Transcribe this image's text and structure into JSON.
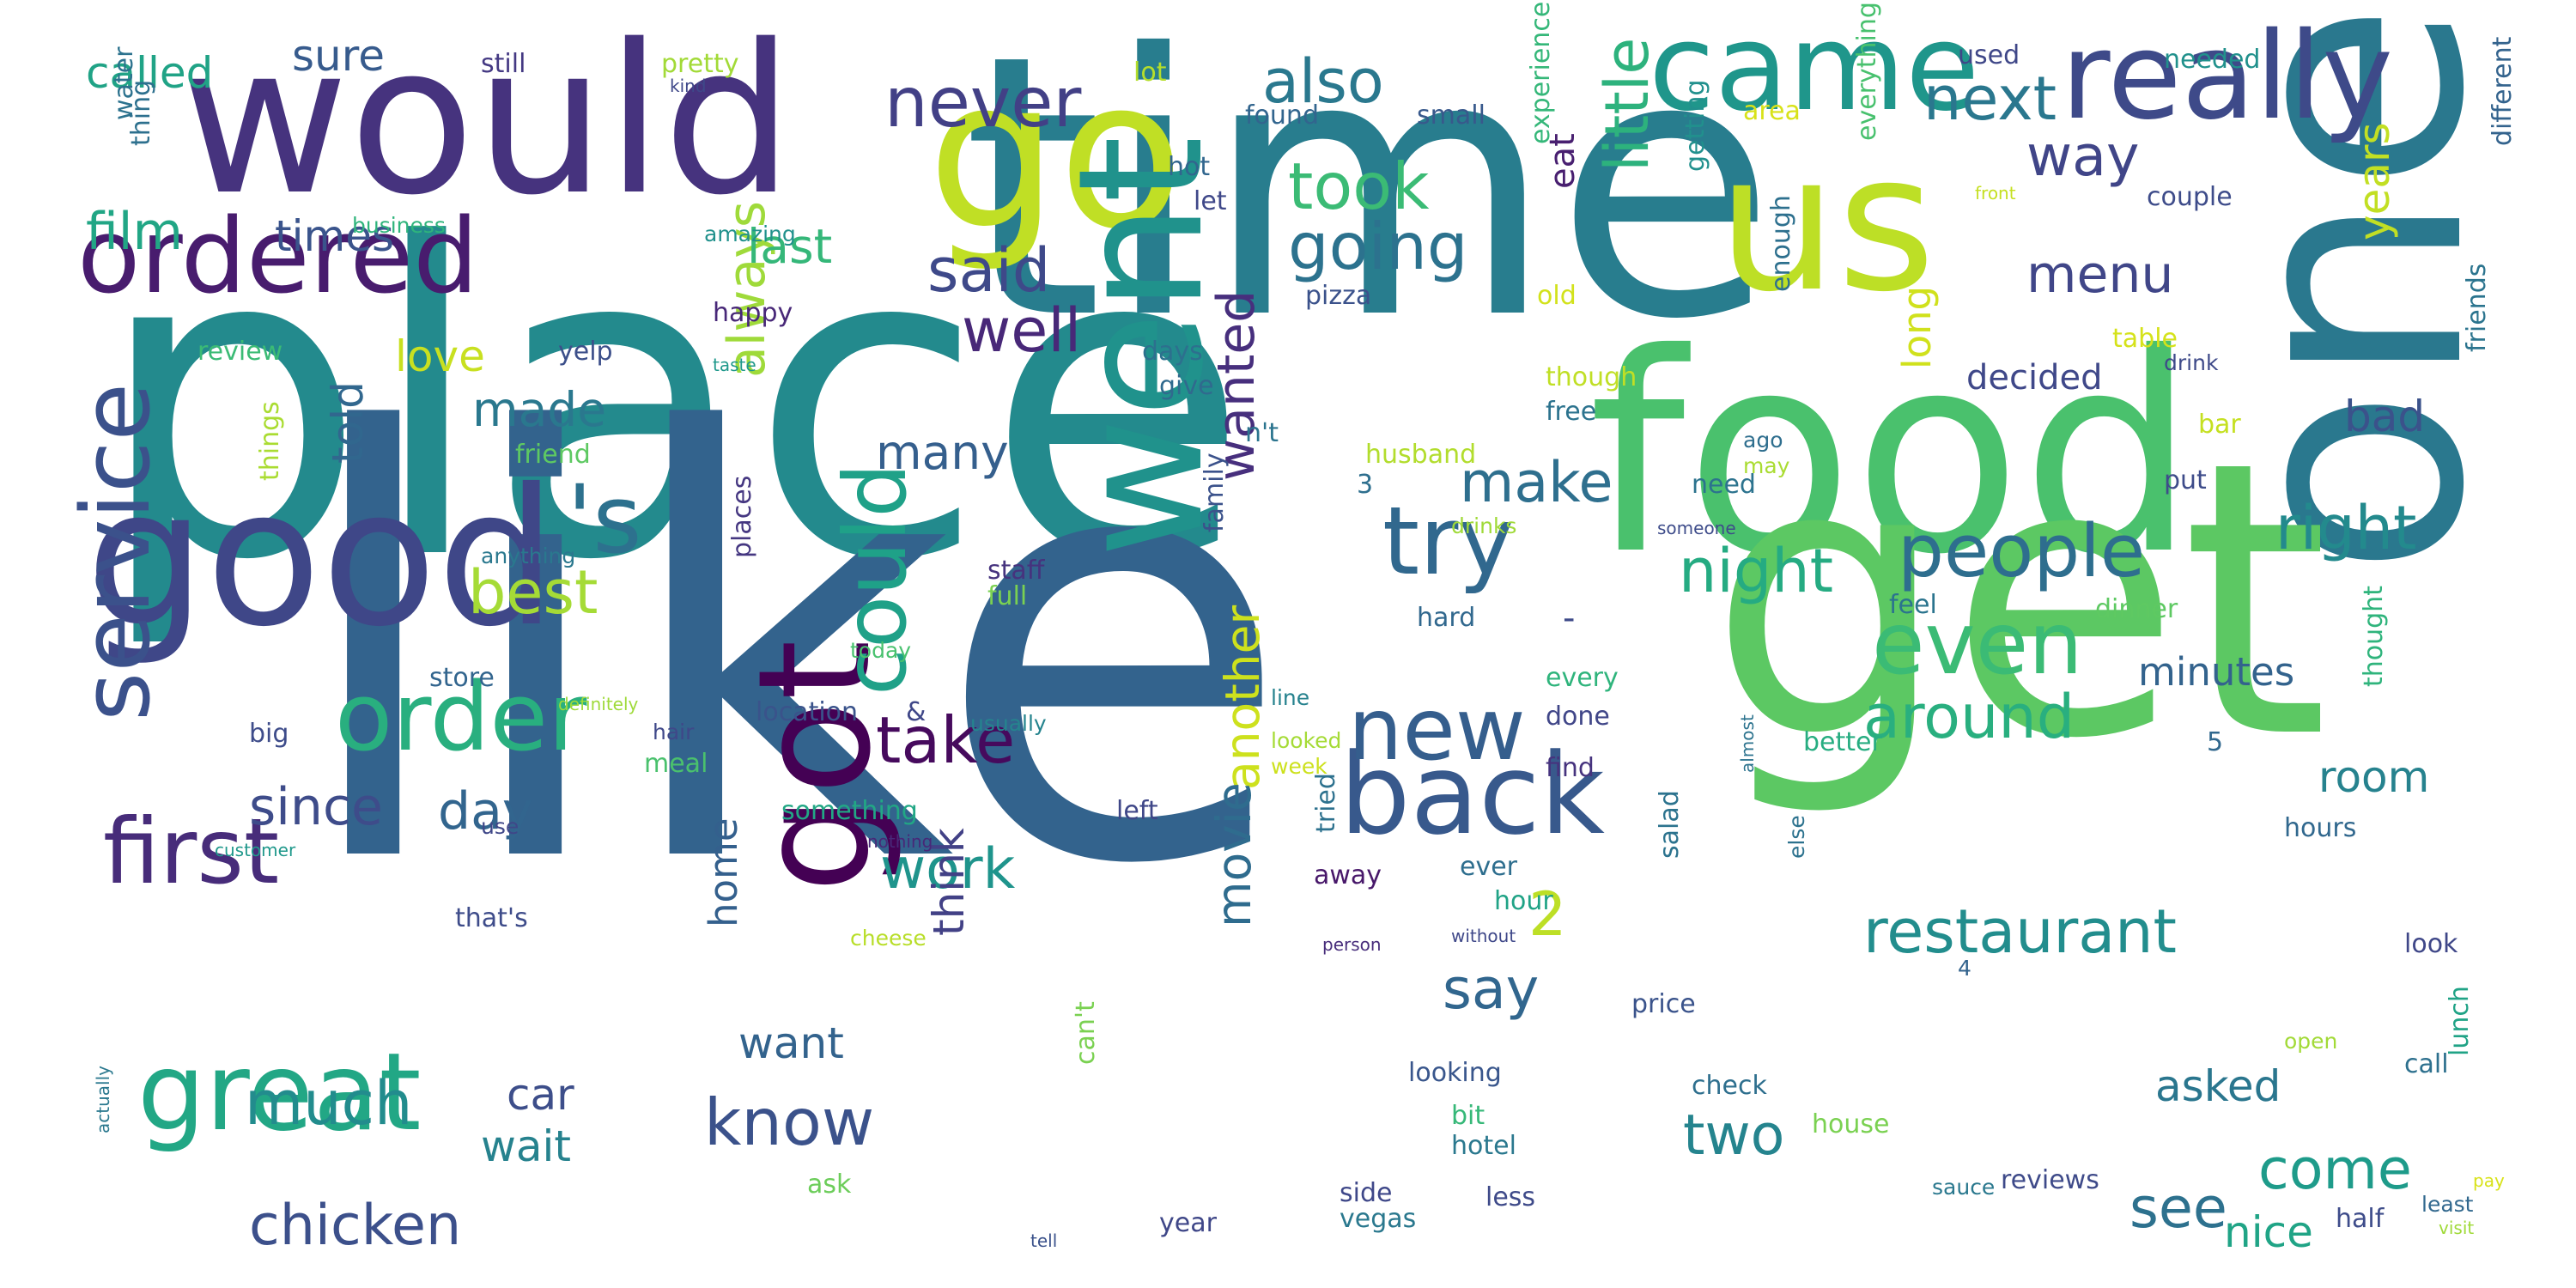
{
  "wordcloud": {
    "words": [
      {
        "text": "place",
        "color": "#238a8d"
      },
      {
        "text": "like",
        "color": "#33638d"
      },
      {
        "text": "time",
        "color": "#287d8e"
      },
      {
        "text": "one",
        "color": "#2a788e"
      },
      {
        "text": "food",
        "color": "#4ac16d"
      },
      {
        "text": "get",
        "color": "#5cc863"
      },
      {
        "text": "would",
        "color": "#46337e"
      },
      {
        "text": "go",
        "color": "#c0df25"
      },
      {
        "text": "good",
        "color": "#3f4788"
      },
      {
        "text": "went",
        "color": "#20928c"
      },
      {
        "text": "us",
        "color": "#bddf26"
      },
      {
        "text": "got",
        "color": "#440154"
      },
      {
        "text": "really",
        "color": "#3e4a89"
      },
      {
        "text": "came",
        "color": "#1f968b"
      },
      {
        "text": "ordered",
        "color": "#481c6e"
      },
      {
        "text": "back",
        "color": "#38598c"
      },
      {
        "text": "great",
        "color": "#22a785"
      },
      {
        "text": "order",
        "color": "#29af7f"
      },
      {
        "text": "service",
        "color": "#3b518b"
      },
      {
        "text": "first",
        "color": "#472c7a"
      },
      {
        "text": "could",
        "color": "#1fa188"
      },
      {
        "text": "try",
        "color": "#31688e"
      },
      {
        "text": "new",
        "color": "#355e8d"
      },
      {
        "text": "'s",
        "color": "#2d718e"
      },
      {
        "text": "even",
        "color": "#3bbb75"
      },
      {
        "text": "people",
        "color": "#2e6e8e"
      },
      {
        "text": "never",
        "color": "#424086"
      },
      {
        "text": "going",
        "color": "#2c728e"
      },
      {
        "text": "also",
        "color": "#2a788e"
      },
      {
        "text": "took",
        "color": "#3bbb75"
      },
      {
        "text": "night",
        "color": "#25ab82"
      },
      {
        "text": "restaurant",
        "color": "#228d8d"
      },
      {
        "text": "around",
        "color": "#29af7f"
      },
      {
        "text": "said",
        "color": "#3e4989"
      },
      {
        "text": "next",
        "color": "#2a778e"
      },
      {
        "text": "well",
        "color": "#482878"
      },
      {
        "text": "little",
        "color": "#2db27d"
      },
      {
        "text": "right",
        "color": "#238a8d"
      },
      {
        "text": "know",
        "color": "#3b528b"
      },
      {
        "text": "take",
        "color": "#460a5d"
      },
      {
        "text": "menu",
        "color": "#404688"
      },
      {
        "text": "make",
        "color": "#2e6f8e"
      },
      {
        "text": "way",
        "color": "#404588"
      },
      {
        "text": "best",
        "color": "#a5db36"
      },
      {
        "text": "much",
        "color": "#228c8d"
      },
      {
        "text": "chicken",
        "color": "#3c508b"
      },
      {
        "text": "two",
        "color": "#25848e"
      },
      {
        "text": "see",
        "color": "#2d718e"
      },
      {
        "text": "come",
        "color": "#1e9b8a"
      },
      {
        "text": "work",
        "color": "#1f948c"
      },
      {
        "text": "say",
        "color": "#31668e"
      },
      {
        "text": "film",
        "color": "#21a685"
      },
      {
        "text": "day",
        "color": "#32658e"
      },
      {
        "text": "since",
        "color": "#3e4c8a"
      },
      {
        "text": "always",
        "color": "#9fda3a"
      },
      {
        "text": "wanted",
        "color": "#472f7d"
      },
      {
        "text": "another",
        "color": "#cde11d"
      },
      {
        "text": "movie",
        "color": "#2f6c8e"
      },
      {
        "text": "many",
        "color": "#355f8d"
      },
      {
        "text": "last",
        "color": "#35b779"
      },
      {
        "text": "called",
        "color": "#20a386"
      },
      {
        "text": "sure",
        "color": "#375b8d"
      },
      {
        "text": "times",
        "color": "#3a548c"
      },
      {
        "text": "made",
        "color": "#2a788e"
      },
      {
        "text": "love",
        "color": "#c8e020"
      },
      {
        "text": "told",
        "color": "#31678e"
      },
      {
        "text": "car",
        "color": "#3d4e8a"
      },
      {
        "text": "wait",
        "color": "#26828e"
      },
      {
        "text": "want",
        "color": "#33638d"
      },
      {
        "text": "think",
        "color": "#424186"
      },
      {
        "text": "home",
        "color": "#34608d"
      },
      {
        "text": "long",
        "color": "#d0e11c"
      },
      {
        "text": "room",
        "color": "#26828e"
      },
      {
        "text": "asked",
        "color": "#2a768e"
      },
      {
        "text": "nice",
        "color": "#20a486"
      },
      {
        "text": "years",
        "color": "#c2df23"
      },
      {
        "text": "bad",
        "color": "#3b528b"
      },
      {
        "text": "minutes",
        "color": "#33638d"
      },
      {
        "text": "decided",
        "color": "#3f4889"
      },
      {
        "text": "eat",
        "color": "#481f70"
      },
      {
        "text": "2",
        "color": "#bddf26"
      },
      {
        "text": "-",
        "color": "#3e4a89"
      },
      {
        "text": "still",
        "color": "#443983"
      },
      {
        "text": "pretty",
        "color": "#a2da37"
      },
      {
        "text": "lot",
        "color": "#b5de2b"
      },
      {
        "text": "used",
        "color": "#3f4788"
      },
      {
        "text": "needed",
        "color": "#21918c"
      },
      {
        "text": "area",
        "color": "#d8e219"
      },
      {
        "text": "kind",
        "color": "#3f4889"
      },
      {
        "text": "water",
        "color": "#2c728e"
      },
      {
        "text": "thing",
        "color": "#2d708e"
      },
      {
        "text": "hot",
        "color": "#31668e"
      },
      {
        "text": "let",
        "color": "#3f4889"
      },
      {
        "text": "found",
        "color": "#32658e"
      },
      {
        "text": "small",
        "color": "#38598c"
      },
      {
        "text": "business",
        "color": "#2fb47c"
      },
      {
        "text": "amazing",
        "color": "#21918c"
      },
      {
        "text": "experience",
        "color": "#35b779"
      },
      {
        "text": "getting",
        "color": "#21908d"
      },
      {
        "text": "everything",
        "color": "#48c16e"
      },
      {
        "text": "couple",
        "color": "#3e4c8a"
      },
      {
        "text": "different",
        "color": "#33638d"
      },
      {
        "text": "front",
        "color": "#c5e021"
      },
      {
        "text": "happy",
        "color": "#482878"
      },
      {
        "text": "pizza",
        "color": "#3b528b"
      },
      {
        "text": "days",
        "color": "#2d708e"
      },
      {
        "text": "old",
        "color": "#d2e21b"
      },
      {
        "text": "enough",
        "color": "#2d708e"
      },
      {
        "text": "table",
        "color": "#d5e21a"
      },
      {
        "text": "drink",
        "color": "#3e4a89"
      },
      {
        "text": "friends",
        "color": "#2b748e"
      },
      {
        "text": "review",
        "color": "#3bbb75"
      },
      {
        "text": "yelp",
        "color": "#3c4f8a"
      },
      {
        "text": "taste",
        "color": "#1f988b"
      },
      {
        "text": "give",
        "color": "#306a8e"
      },
      {
        "text": "though",
        "color": "#c0df25"
      },
      {
        "text": "free",
        "color": "#2c738e"
      },
      {
        "text": "friend",
        "color": "#5ec962"
      },
      {
        "text": "husband",
        "color": "#b2dd2d"
      },
      {
        "text": "n't",
        "color": "#2b748e"
      },
      {
        "text": "ago",
        "color": "#2e6e8e"
      },
      {
        "text": "may",
        "color": "#aadc32"
      },
      {
        "text": "bar",
        "color": "#c5e021"
      },
      {
        "text": "3",
        "color": "#2e6f8e"
      },
      {
        "text": "need",
        "color": "#2c738e"
      },
      {
        "text": "put",
        "color": "#3e4c8a"
      },
      {
        "text": "family",
        "color": "#3b528b"
      },
      {
        "text": "drinks",
        "color": "#a0da39"
      },
      {
        "text": "someone",
        "color": "#3e4c8a"
      },
      {
        "text": "anything",
        "color": "#2a788e"
      },
      {
        "text": "things",
        "color": "#aadc32"
      },
      {
        "text": "staff",
        "color": "#46337e"
      },
      {
        "text": "full",
        "color": "#7ad151"
      },
      {
        "text": "places",
        "color": "#453781"
      },
      {
        "text": "feel",
        "color": "#2b748e"
      },
      {
        "text": "dinner",
        "color": "#5ec962"
      },
      {
        "text": "hard",
        "color": "#31688e"
      },
      {
        "text": "today",
        "color": "#48c16e"
      },
      {
        "text": "store",
        "color": "#32658e"
      },
      {
        "text": "every",
        "color": "#2fb47c"
      },
      {
        "text": "definitely",
        "color": "#9fda3a"
      },
      {
        "text": "location",
        "color": "#3a538b"
      },
      {
        "text": "&",
        "color": "#3f4788"
      },
      {
        "text": "line",
        "color": "#26828e"
      },
      {
        "text": "done",
        "color": "#404688"
      },
      {
        "text": "thought",
        "color": "#2fb47c"
      },
      {
        "text": "hair",
        "color": "#3f4889"
      },
      {
        "text": "usually",
        "color": "#25848e"
      },
      {
        "text": "looked",
        "color": "#a5db36"
      },
      {
        "text": "better",
        "color": "#27ad81"
      },
      {
        "text": "big",
        "color": "#3e4c8a"
      },
      {
        "text": "meal",
        "color": "#4ac16d"
      },
      {
        "text": "week",
        "color": "#cde11d"
      },
      {
        "text": "find",
        "color": "#46337e"
      },
      {
        "text": "5",
        "color": "#31688e"
      },
      {
        "text": "almost",
        "color": "#2c738e"
      },
      {
        "text": "something",
        "color": "#22a785"
      },
      {
        "text": "left",
        "color": "#3f4788"
      },
      {
        "text": "hours",
        "color": "#31688e"
      },
      {
        "text": "use",
        "color": "#3f4788"
      },
      {
        "text": "customer",
        "color": "#1f988b"
      },
      {
        "text": "nothing",
        "color": "#482878"
      },
      {
        "text": "tried",
        "color": "#2d718e"
      },
      {
        "text": "that's",
        "color": "#3e4c8a"
      },
      {
        "text": "away",
        "color": "#48186a"
      },
      {
        "text": "ever",
        "color": "#2e6e8e"
      },
      {
        "text": "salad",
        "color": "#2c738e"
      },
      {
        "text": "else",
        "color": "#2c728e"
      },
      {
        "text": "hour",
        "color": "#20a386"
      },
      {
        "text": "without",
        "color": "#3f4889"
      },
      {
        "text": "person",
        "color": "#472d7b"
      },
      {
        "text": "cheese",
        "color": "#b8de29"
      },
      {
        "text": "4",
        "color": "#33638d"
      },
      {
        "text": "look",
        "color": "#3f4788"
      },
      {
        "text": "price",
        "color": "#3a538b"
      },
      {
        "text": "call",
        "color": "#2d708e"
      },
      {
        "text": "lunch",
        "color": "#20a386"
      },
      {
        "text": "can't",
        "color": "#7ad151"
      },
      {
        "text": "check",
        "color": "#2e6f8e"
      },
      {
        "text": "looking",
        "color": "#39568c"
      },
      {
        "text": "bit",
        "color": "#36b878"
      },
      {
        "text": "hotel",
        "color": "#2a788e"
      },
      {
        "text": "house",
        "color": "#7ad151"
      },
      {
        "text": "open",
        "color": "#a2da37"
      },
      {
        "text": "actually",
        "color": "#2a788e"
      },
      {
        "text": "ask",
        "color": "#6ccd5a"
      },
      {
        "text": "vegas",
        "color": "#2a788e"
      },
      {
        "text": "side",
        "color": "#3f4889"
      },
      {
        "text": "less",
        "color": "#3e4a89"
      },
      {
        "text": "year",
        "color": "#3f4788"
      },
      {
        "text": "reviews",
        "color": "#3e4a89"
      },
      {
        "text": "sauce",
        "color": "#2a788e"
      },
      {
        "text": "least",
        "color": "#31688e"
      },
      {
        "text": "pay",
        "color": "#d8e219"
      },
      {
        "text": "half",
        "color": "#3e4c8a"
      },
      {
        "text": "visit",
        "color": "#a0da39"
      },
      {
        "text": "tell",
        "color": "#3b528b"
      }
    ]
  }
}
